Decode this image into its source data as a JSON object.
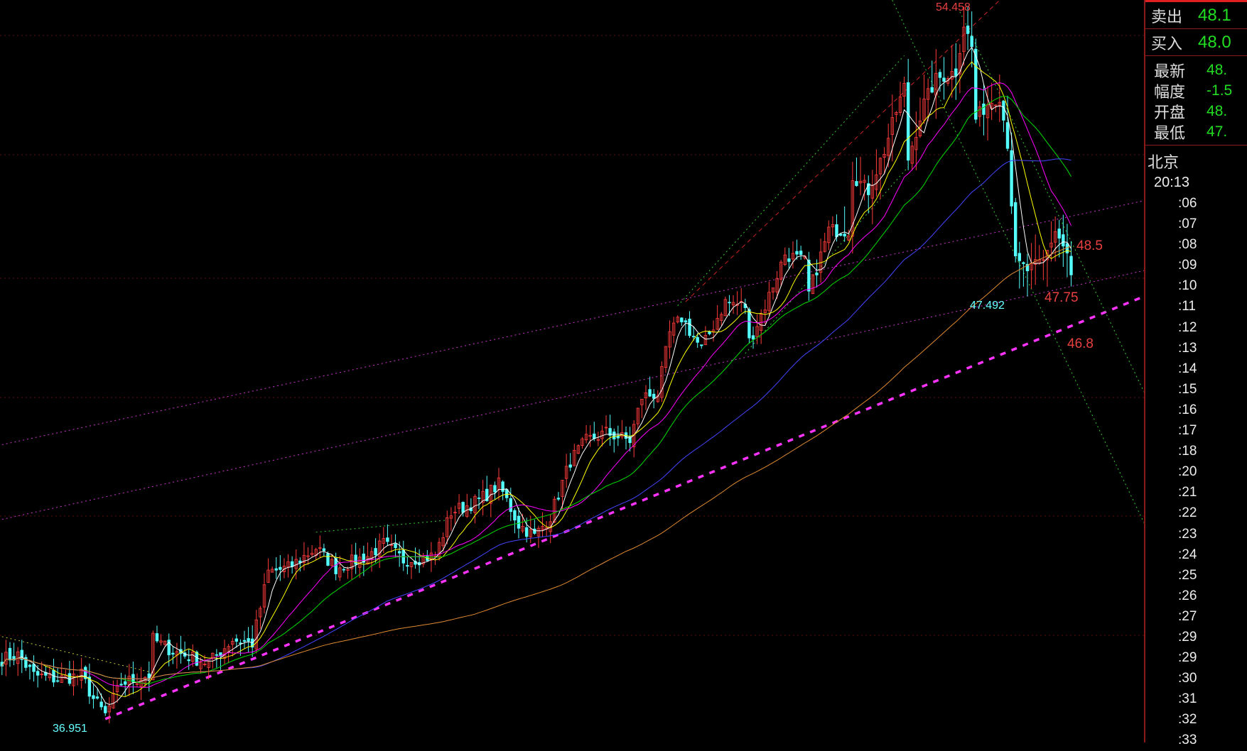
{
  "chart_data": {
    "type": "candlestick",
    "y_scale": "linear",
    "ylim": [
      36.55,
      54.85
    ],
    "grid": true,
    "close_path": {
      "bar": [
        0,
        4,
        8,
        14,
        20,
        23,
        26,
        30,
        37,
        38,
        43,
        52,
        58,
        63,
        67,
        72,
        79,
        84,
        92,
        96,
        101,
        109,
        113,
        120,
        125,
        130,
        134,
        138,
        143,
        147,
        152,
        158,
        161,
        165,
        168,
        171,
        176,
        182,
        187,
        188,
        192,
        197,
        202,
        203,
        208,
        213,
        214,
        218,
        222,
        225,
        227,
        228,
        232,
        235,
        240,
        242,
        244,
        245,
        248,
        251,
        253,
        255,
        258,
        262,
        265,
        268,
        269
      ],
      "price": [
        38.44,
        38.54,
        38.04,
        37.94,
        38.04,
        37.45,
        37.05,
        37.84,
        38.04,
        38.93,
        38.64,
        38.34,
        38.93,
        38.83,
        40.61,
        40.71,
        41.21,
        40.71,
        41.01,
        41.31,
        40.91,
        41.01,
        42.1,
        42.39,
        42.79,
        41.8,
        41.5,
        42.0,
        43.38,
        43.88,
        44.08,
        43.88,
        44.97,
        45.06,
        46.55,
        46.94,
        46.15,
        47.34,
        47.24,
        46.35,
        47.24,
        48.53,
        48.33,
        47.54,
        49.12,
        49.12,
        50.5,
        50.11,
        51.1,
        52.08,
        52.68,
        50.9,
        52.28,
        52.88,
        53.08,
        54.26,
        53.67,
        51.89,
        52.28,
        52.48,
        51.3,
        48.33,
        48.13,
        48.33,
        49.12,
        48.53,
        47.93
      ]
    },
    "moving_averages": [
      {
        "period": 5,
        "color": "#ffffff"
      },
      {
        "period": 10,
        "color": "#ffff00"
      },
      {
        "period": 20,
        "color": "#ff00ff"
      },
      {
        "period": 30,
        "color": "#00dd00"
      },
      {
        "period": 60,
        "color": "#4444ff"
      },
      {
        "period": 120,
        "color": "#e08a30"
      }
    ],
    "trendlines": [
      {
        "from": [
          26,
          36.95
        ],
        "to": [
          288,
          47.5
        ],
        "color": "#ff33ff",
        "style": "thick-dashed"
      },
      {
        "from": [
          0,
          43.78
        ],
        "to": [
          288,
          49.87
        ],
        "color": "#cc33cc",
        "style": "dotted"
      },
      {
        "from": [
          0,
          41.92
        ],
        "to": [
          288,
          48.13
        ],
        "color": "#cc33cc",
        "style": "dotted"
      },
      {
        "from": [
          224,
          54.85
        ],
        "to": [
          288,
          41.7
        ],
        "color": "#33cc33",
        "style": "dotted"
      },
      {
        "from": [
          241,
          54.56
        ],
        "to": [
          288,
          44.96
        ],
        "color": "#33cc33",
        "style": "dotted"
      },
      {
        "from": [
          172,
          47.34
        ],
        "to": [
          251,
          54.85
        ],
        "color": "#cc2222",
        "style": "dashed"
      },
      {
        "from": [
          170,
          47.24
        ],
        "to": [
          227,
          53.47
        ],
        "color": "#33cc33",
        "style": "dotted"
      },
      {
        "from": [
          187,
          46.05
        ],
        "to": [
          228,
          50.7
        ],
        "color": "#33cc33",
        "style": "dotted"
      },
      {
        "from": [
          0,
          39.0
        ],
        "to": [
          38,
          38.1
        ],
        "color": "#cccc33",
        "style": "dotted"
      },
      {
        "from": [
          79,
          41.6
        ],
        "to": [
          112,
          41.9
        ],
        "color": "#33cc33",
        "style": "dotted"
      }
    ],
    "annotations": {
      "high": "54.458",
      "low": "36.951",
      "recent_low": "47.492",
      "level_1": "48.5",
      "level_2": "47.75",
      "level_3": "46.8"
    },
    "colors": {
      "up": "#ff3b3b",
      "down": "#54ffff",
      "level": "#e84040",
      "low_label": "#66ffff"
    }
  },
  "panel": {
    "sell": {
      "label": "卖出",
      "value": "48.1"
    },
    "buy": {
      "label": "买入",
      "value": "48.0"
    },
    "stats": [
      {
        "label": "最新",
        "value": "48."
      },
      {
        "label": "幅度",
        "value": "-1.5"
      },
      {
        "label": "开盘",
        "value": "48."
      },
      {
        "label": "最低",
        "value": "47."
      }
    ],
    "city": "北京",
    "time": "20:13",
    "ticks": [
      ":06",
      ":07",
      ":08",
      ":09",
      ":10",
      ":11",
      ":12",
      ":13",
      ":14",
      ":15",
      ":16",
      ":17",
      ":18",
      ":20",
      ":21",
      ":22",
      ":23",
      ":24",
      ":25",
      ":26",
      ":27",
      ":29",
      ":29",
      ":30",
      ":31",
      ":32",
      ":33"
    ]
  }
}
